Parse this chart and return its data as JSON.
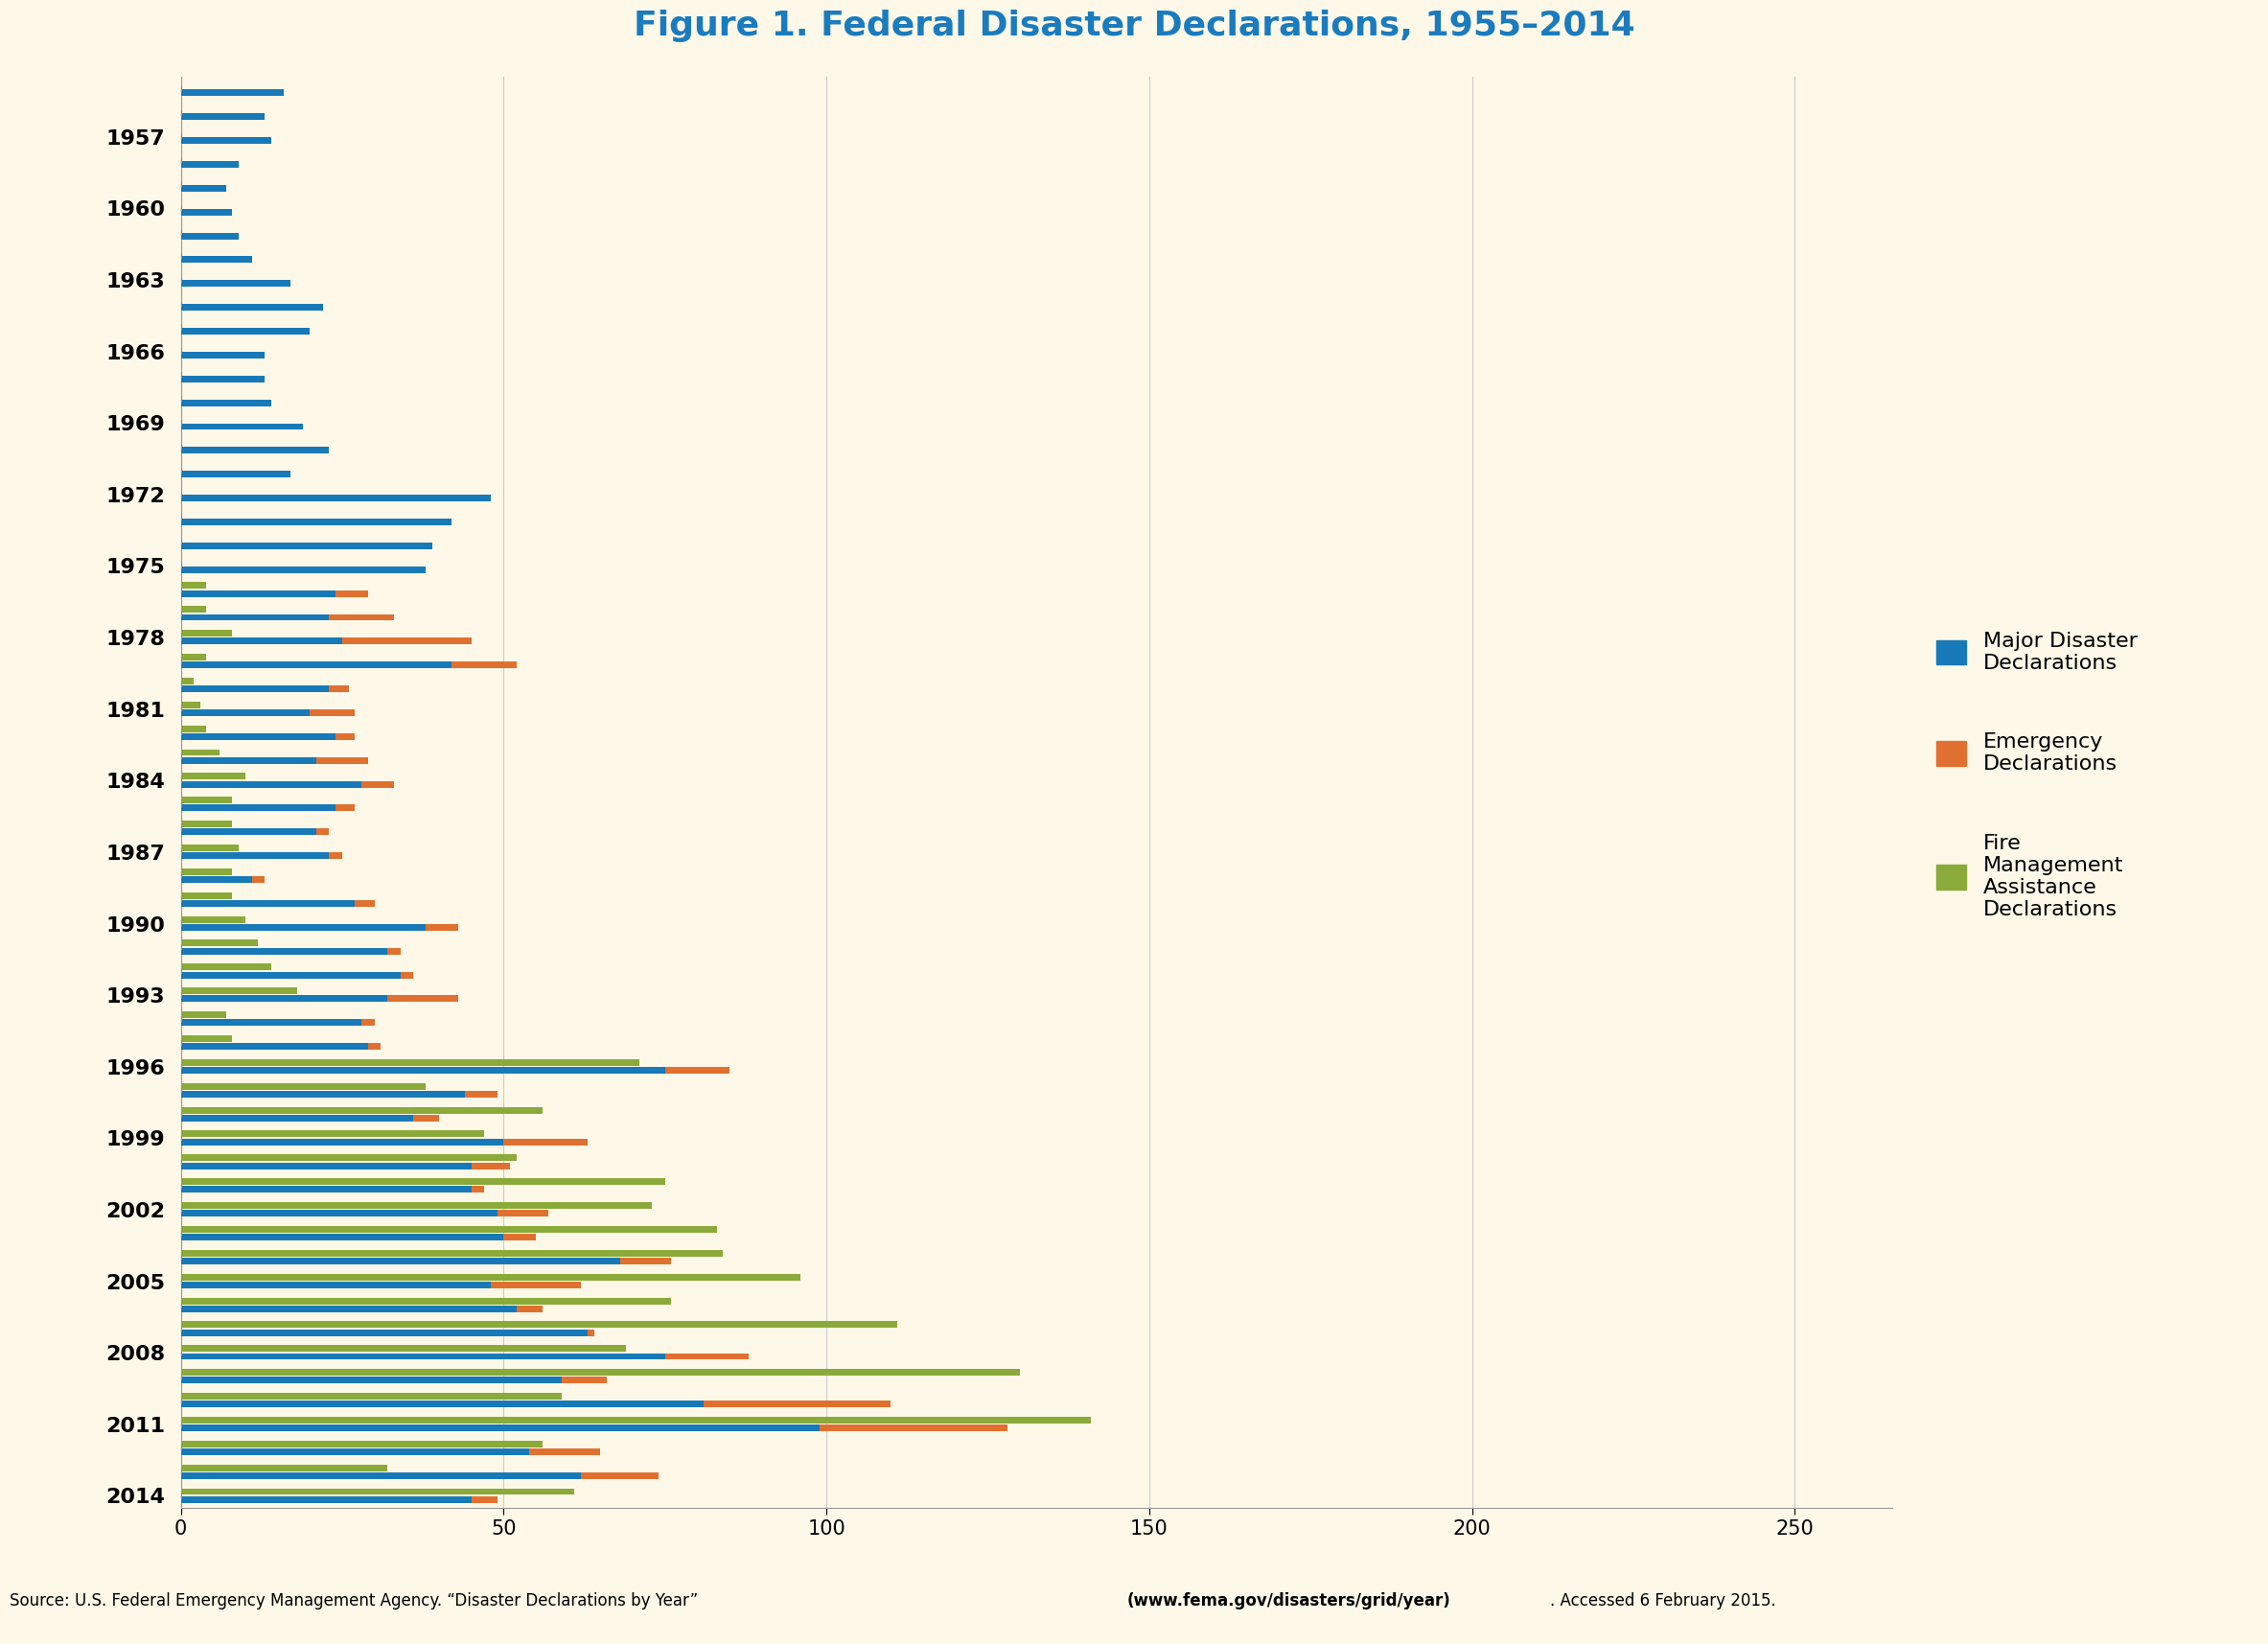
{
  "title": "Figure 1. Federal Disaster Declarations, 1955–2014",
  "title_color": "#1a7bbf",
  "background_color": "#fdf8e8",
  "colors": {
    "major": "#1879b8",
    "emergency": "#e07030",
    "fire": "#8aaa3a"
  },
  "legend_labels": {
    "major": "Major Disaster\nDeclarations",
    "emergency": "Emergency\nDeclarations",
    "fire": "Fire\nManagement\nAssistance\nDeclarations"
  },
  "xlim": [
    0,
    260
  ],
  "xticks": [
    0,
    50,
    100,
    150,
    200,
    250
  ],
  "label_years": [
    1957,
    1960,
    1963,
    1966,
    1969,
    1972,
    1975,
    1978,
    1981,
    1984,
    1987,
    1990,
    1993,
    1996,
    1999,
    2002,
    2005,
    2008,
    2011,
    2014
  ],
  "years": [
    1955,
    1956,
    1957,
    1958,
    1959,
    1960,
    1961,
    1962,
    1963,
    1964,
    1965,
    1966,
    1967,
    1968,
    1969,
    1970,
    1971,
    1972,
    1973,
    1974,
    1975,
    1976,
    1977,
    1978,
    1979,
    1980,
    1981,
    1982,
    1983,
    1984,
    1985,
    1986,
    1987,
    1988,
    1989,
    1990,
    1991,
    1992,
    1993,
    1994,
    1995,
    1996,
    1997,
    1998,
    1999,
    2000,
    2001,
    2002,
    2003,
    2004,
    2005,
    2006,
    2007,
    2008,
    2009,
    2010,
    2011,
    2012,
    2013,
    2014
  ],
  "major": [
    16,
    13,
    14,
    9,
    7,
    8,
    9,
    11,
    17,
    22,
    20,
    13,
    13,
    14,
    19,
    23,
    17,
    48,
    42,
    39,
    38,
    24,
    23,
    25,
    42,
    23,
    20,
    24,
    21,
    28,
    24,
    21,
    23,
    11,
    27,
    38,
    32,
    34,
    32,
    28,
    29,
    75,
    44,
    36,
    50,
    45,
    45,
    49,
    50,
    68,
    48,
    52,
    63,
    75,
    59,
    81,
    99,
    54,
    62,
    45
  ],
  "emergency": [
    0,
    0,
    0,
    0,
    0,
    0,
    0,
    0,
    0,
    0,
    0,
    0,
    0,
    0,
    0,
    0,
    0,
    0,
    0,
    0,
    0,
    5,
    10,
    20,
    10,
    3,
    7,
    3,
    8,
    5,
    3,
    2,
    2,
    2,
    3,
    5,
    2,
    2,
    11,
    2,
    2,
    10,
    5,
    4,
    13,
    6,
    2,
    8,
    5,
    8,
    14,
    4,
    1,
    13,
    7,
    29,
    29,
    11,
    12,
    4
  ],
  "fire": [
    0,
    0,
    0,
    0,
    0,
    0,
    0,
    0,
    0,
    0,
    0,
    0,
    0,
    0,
    0,
    0,
    0,
    0,
    0,
    0,
    0,
    4,
    4,
    8,
    4,
    2,
    3,
    4,
    6,
    10,
    8,
    8,
    9,
    8,
    8,
    10,
    12,
    14,
    18,
    7,
    8,
    71,
    38,
    56,
    47,
    52,
    75,
    73,
    83,
    84,
    96,
    76,
    111,
    69,
    130,
    59,
    141,
    56,
    32,
    61
  ],
  "footer_normal1": "Source: U.S. Federal Emergency Management Agency. “Disaster Declarations by Year”  ",
  "footer_bold": "(www.fema.gov/disasters/grid/year)",
  "footer_normal2": ". Accessed 6 February 2015."
}
